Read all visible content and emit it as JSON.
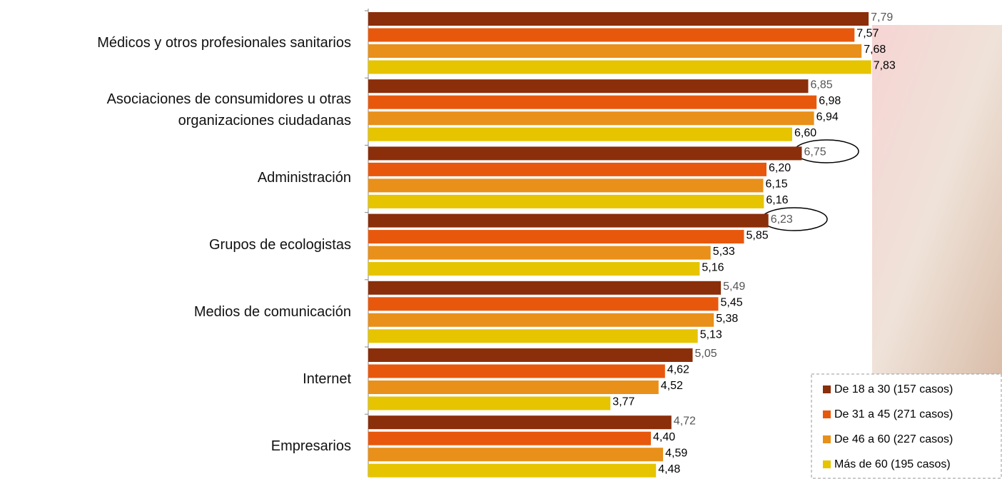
{
  "chart_data": {
    "type": "bar",
    "orientation": "horizontal",
    "categories": [
      "Médicos y otros profesionales sanitarios",
      "Asociaciones de consumidores u otras organizaciones ciudadanas",
      "Administración",
      "Grupos de ecologistas",
      "Medios de comunicación",
      "Internet",
      "Empresarios"
    ],
    "series": [
      {
        "name": "De 18 a 30 (157 casos)",
        "color": "#8b2e0a",
        "values": [
          7.79,
          6.85,
          6.75,
          6.23,
          5.49,
          5.05,
          4.72
        ],
        "value_labels": [
          "7,79",
          "6,85",
          "6,75",
          "6,23",
          "5,49",
          "5,05",
          "4,72"
        ]
      },
      {
        "name": "De 31 a 45 (271 casos)",
        "color": "#e8580c",
        "values": [
          7.57,
          6.98,
          6.2,
          5.85,
          5.45,
          4.62,
          4.4
        ],
        "value_labels": [
          "7,57",
          "6,98",
          "6,20",
          "5,85",
          "5,45",
          "4,62",
          "4,40"
        ]
      },
      {
        "name": "De 46 a 60 (227 casos)",
        "color": "#e8901a",
        "values": [
          7.68,
          6.94,
          6.15,
          5.33,
          5.38,
          4.52,
          4.59
        ],
        "value_labels": [
          "7,68",
          "6,94",
          "6,15",
          "5,33",
          "5,38",
          "4,52",
          "4,59"
        ]
      },
      {
        "name": "Más de 60 (195 casos)",
        "color": "#e6c400",
        "values": [
          7.83,
          6.6,
          6.16,
          5.16,
          5.13,
          3.77,
          4.48
        ],
        "value_labels": [
          "7,83",
          "6,60",
          "6,16",
          "5,16",
          "5,13",
          "3,77",
          "4,48"
        ]
      }
    ],
    "xlim": [
      0,
      8
    ],
    "legend": "lower right"
  }
}
